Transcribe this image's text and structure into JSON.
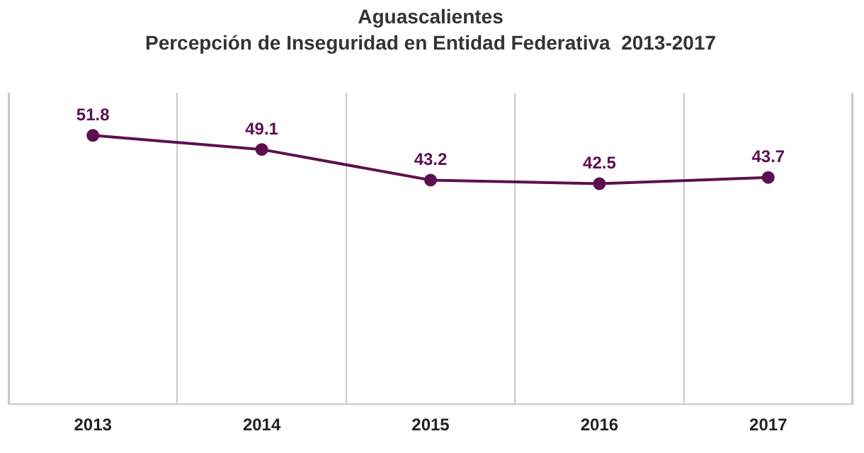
{
  "chart_data": {
    "type": "line",
    "title": "Aguascalientes",
    "subtitle": "Percepción de Inseguridad en Entidad Federativa  2013-2017",
    "categories": [
      "2013",
      "2014",
      "2015",
      "2016",
      "2017"
    ],
    "series": [
      {
        "color": "#5c0f50",
        "values": [
          51.8,
          49.1,
          43.2,
          42.5,
          43.7
        ]
      }
    ],
    "data_labels": true,
    "grid": "x",
    "legend": false,
    "marker": "circle",
    "line_style": "solid"
  }
}
